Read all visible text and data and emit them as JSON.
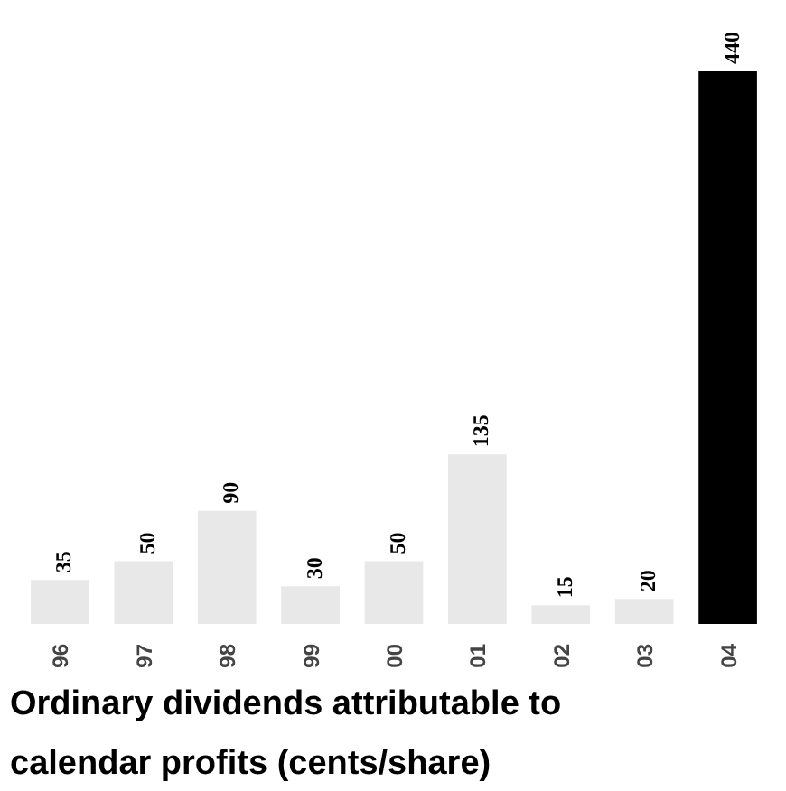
{
  "chart_data": {
    "type": "bar",
    "title": "Ordinary dividends attributable to calendar profits (cents/share)",
    "categories": [
      "96",
      "97",
      "98",
      "99",
      "00",
      "01",
      "02",
      "03",
      "04"
    ],
    "values": [
      35,
      50,
      90,
      30,
      50,
      135,
      15,
      20,
      440
    ],
    "colors": [
      "#e8e8e8",
      "#e8e8e8",
      "#e8e8e8",
      "#e8e8e8",
      "#e8e8e8",
      "#e8e8e8",
      "#e8e8e8",
      "#e8e8e8",
      "#000000"
    ],
    "data_labels": true
  }
}
